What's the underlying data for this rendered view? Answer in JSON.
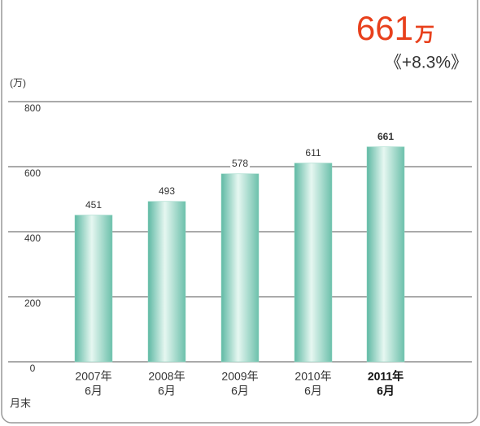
{
  "headline": {
    "value": "661",
    "unit": "万",
    "change": "《+8.3%》"
  },
  "chart_data": {
    "type": "bar",
    "y_unit": "(万)",
    "x_label": "月末",
    "categories": [
      [
        "2007年",
        "6月"
      ],
      [
        "2008年",
        "6月"
      ],
      [
        "2009年",
        "6月"
      ],
      [
        "2010年",
        "6月"
      ],
      [
        "2011年",
        "6月"
      ]
    ],
    "values": [
      451,
      493,
      578,
      611,
      661
    ],
    "color": "#8fd3c0",
    "ylim": [
      0,
      800
    ],
    "yticks": [
      0,
      200,
      400,
      600,
      800
    ],
    "grid": true
  }
}
